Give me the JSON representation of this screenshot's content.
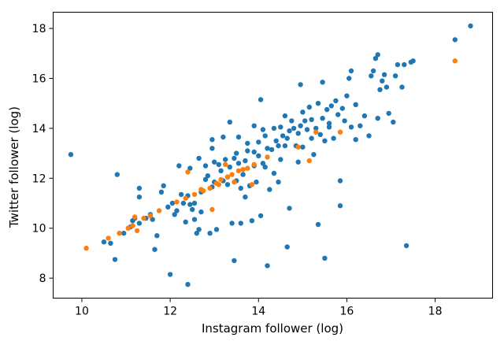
{
  "chart_data": {
    "type": "scatter",
    "xlabel": "Instagram follower (log)",
    "ylabel": "Twitter follower (log)",
    "xlim": [
      9.35,
      19.3
    ],
    "ylim": [
      7.2,
      18.65
    ],
    "x_ticks": [
      10,
      12,
      14,
      16,
      18
    ],
    "y_ticks": [
      8,
      10,
      12,
      14,
      16,
      18
    ],
    "x_tick_labels": [
      "10",
      "12",
      "14",
      "16",
      "18"
    ],
    "y_tick_labels": [
      "8",
      "10",
      "12",
      "14",
      "16",
      "18"
    ],
    "grid": false,
    "series": [
      {
        "name": "blue",
        "color": "#1f77b4",
        "points": [
          [
            9.75,
            12.95
          ],
          [
            10.5,
            9.45
          ],
          [
            10.65,
            9.4
          ],
          [
            10.75,
            8.75
          ],
          [
            10.8,
            12.15
          ],
          [
            10.95,
            9.8
          ],
          [
            11.1,
            10.05
          ],
          [
            11.15,
            10.3
          ],
          [
            11.2,
            10.4
          ],
          [
            11.3,
            10.2
          ],
          [
            11.3,
            11.6
          ],
          [
            11.3,
            11.25
          ],
          [
            11.45,
            10.4
          ],
          [
            11.55,
            10.55
          ],
          [
            11.6,
            10.35
          ],
          [
            11.65,
            9.15
          ],
          [
            11.7,
            9.7
          ],
          [
            11.8,
            11.45
          ],
          [
            11.85,
            11.7
          ],
          [
            11.95,
            10.85
          ],
          [
            12.0,
            8.15
          ],
          [
            12.05,
            11.0
          ],
          [
            12.1,
            10.55
          ],
          [
            12.15,
            10.7
          ],
          [
            12.2,
            12.5
          ],
          [
            12.25,
            11.35
          ],
          [
            12.3,
            11.0
          ],
          [
            12.35,
            10.25
          ],
          [
            12.4,
            11.3
          ],
          [
            12.4,
            7.75
          ],
          [
            12.45,
            10.95
          ],
          [
            12.45,
            12.4
          ],
          [
            12.5,
            10.75
          ],
          [
            12.55,
            11.0
          ],
          [
            12.55,
            10.35
          ],
          [
            12.6,
            9.8
          ],
          [
            12.65,
            9.95
          ],
          [
            12.7,
            10.65
          ],
          [
            12.7,
            11.45
          ],
          [
            12.8,
            11.95
          ],
          [
            12.8,
            12.5
          ],
          [
            12.85,
            12.1
          ],
          [
            12.9,
            9.8
          ],
          [
            12.95,
            11.65
          ],
          [
            12.95,
            13.2
          ],
          [
            12.95,
            13.55
          ],
          [
            13.0,
            11.85
          ],
          [
            13.05,
            9.95
          ],
          [
            13.1,
            12.55
          ],
          [
            13.15,
            12.3
          ],
          [
            13.2,
            11.9
          ],
          [
            13.2,
            13.65
          ],
          [
            13.25,
            12.75
          ],
          [
            13.3,
            12.05
          ],
          [
            13.3,
            11.75
          ],
          [
            13.35,
            12.45
          ],
          [
            13.35,
            14.25
          ],
          [
            13.4,
            10.2
          ],
          [
            13.45,
            12.8
          ],
          [
            13.45,
            8.7
          ],
          [
            13.5,
            11.9
          ],
          [
            13.5,
            13.0
          ],
          [
            13.55,
            12.6
          ],
          [
            13.55,
            13.65
          ],
          [
            13.6,
            11.6
          ],
          [
            13.6,
            10.2
          ],
          [
            13.65,
            12.15
          ],
          [
            13.7,
            11.25
          ],
          [
            13.7,
            12.7
          ],
          [
            13.75,
            13.1
          ],
          [
            13.75,
            13.4
          ],
          [
            13.8,
            11.7
          ],
          [
            13.85,
            10.3
          ],
          [
            13.9,
            12.5
          ],
          [
            13.9,
            13.05
          ],
          [
            13.95,
            11.85
          ],
          [
            14.0,
            13.45
          ],
          [
            14.0,
            12.9
          ],
          [
            14.05,
            15.15
          ],
          [
            14.05,
            10.5
          ],
          [
            14.1,
            12.6
          ],
          [
            14.1,
            13.95
          ],
          [
            14.15,
            12.45
          ],
          [
            14.15,
            13.7
          ],
          [
            14.2,
            13.2
          ],
          [
            14.2,
            8.5
          ],
          [
            14.25,
            11.55
          ],
          [
            14.3,
            13.15
          ],
          [
            14.35,
            12.2
          ],
          [
            14.35,
            14.0
          ],
          [
            14.4,
            13.5
          ],
          [
            14.45,
            11.85
          ],
          [
            14.45,
            13.3
          ],
          [
            14.5,
            14.05
          ],
          [
            14.5,
            12.75
          ],
          [
            14.55,
            13.7
          ],
          [
            14.6,
            13.3
          ],
          [
            14.6,
            14.5
          ],
          [
            14.65,
            13.6
          ],
          [
            14.65,
            9.25
          ],
          [
            14.7,
            10.8
          ],
          [
            14.7,
            13.9
          ],
          [
            14.75,
            14.3
          ],
          [
            14.8,
            14.0
          ],
          [
            14.85,
            13.3
          ],
          [
            14.9,
            12.65
          ],
          [
            14.9,
            13.8
          ],
          [
            14.95,
            15.75
          ],
          [
            14.95,
            14.1
          ],
          [
            15.0,
            14.65
          ],
          [
            15.0,
            13.25
          ],
          [
            15.05,
            14.3
          ],
          [
            15.1,
            13.95
          ],
          [
            15.15,
            14.85
          ],
          [
            15.2,
            14.35
          ],
          [
            15.2,
            13.6
          ],
          [
            15.25,
            12.95
          ],
          [
            15.3,
            14.0
          ],
          [
            15.35,
            10.15
          ],
          [
            15.35,
            15.0
          ],
          [
            15.4,
            13.75
          ],
          [
            15.45,
            15.85
          ],
          [
            15.45,
            14.4
          ],
          [
            15.5,
            8.8
          ],
          [
            15.5,
            13.5
          ],
          [
            15.55,
            14.75
          ],
          [
            15.6,
            14.2
          ],
          [
            15.65,
            14.9
          ],
          [
            15.7,
            13.6
          ],
          [
            15.75,
            15.1
          ],
          [
            15.8,
            14.55
          ],
          [
            15.85,
            11.9
          ],
          [
            15.85,
            10.9
          ],
          [
            15.9,
            14.8
          ],
          [
            15.95,
            14.3
          ],
          [
            16.0,
            15.3
          ],
          [
            16.05,
            16.0
          ],
          [
            16.1,
            16.3
          ],
          [
            16.1,
            14.05
          ],
          [
            16.2,
            14.95
          ],
          [
            16.2,
            13.55
          ],
          [
            16.3,
            14.1
          ],
          [
            16.4,
            14.5
          ],
          [
            16.5,
            13.7
          ],
          [
            16.55,
            16.1
          ],
          [
            16.6,
            16.3
          ],
          [
            16.65,
            16.8
          ],
          [
            16.7,
            14.4
          ],
          [
            16.75,
            15.55
          ],
          [
            16.8,
            15.9
          ],
          [
            16.85,
            16.15
          ],
          [
            16.9,
            15.65
          ],
          [
            16.95,
            14.6
          ],
          [
            17.05,
            14.25
          ],
          [
            17.1,
            16.1
          ],
          [
            17.15,
            16.55
          ],
          [
            17.25,
            15.65
          ],
          [
            17.3,
            16.55
          ],
          [
            17.35,
            9.3
          ],
          [
            17.45,
            16.65
          ],
          [
            17.5,
            16.7
          ],
          [
            18.45,
            17.55
          ],
          [
            18.8,
            18.1
          ],
          [
            16.7,
            16.95
          ],
          [
            15.6,
            14.05
          ],
          [
            13.0,
            12.65
          ],
          [
            12.65,
            12.8
          ],
          [
            13.9,
            14.1
          ]
        ]
      },
      {
        "name": "orange",
        "color": "#ff7f0e",
        "points": [
          [
            10.1,
            9.2
          ],
          [
            10.6,
            9.6
          ],
          [
            10.85,
            9.8
          ],
          [
            11.05,
            10.0
          ],
          [
            11.15,
            10.1
          ],
          [
            11.2,
            10.45
          ],
          [
            11.25,
            9.9
          ],
          [
            11.4,
            10.4
          ],
          [
            11.55,
            10.5
          ],
          [
            11.75,
            10.7
          ],
          [
            12.15,
            11.05
          ],
          [
            12.35,
            11.2
          ],
          [
            12.4,
            12.25
          ],
          [
            12.55,
            11.35
          ],
          [
            12.7,
            11.55
          ],
          [
            12.75,
            11.5
          ],
          [
            12.9,
            11.6
          ],
          [
            12.95,
            10.75
          ],
          [
            13.05,
            11.8
          ],
          [
            13.1,
            11.75
          ],
          [
            13.15,
            11.95
          ],
          [
            13.25,
            12.55
          ],
          [
            13.3,
            12.05
          ],
          [
            13.4,
            12.15
          ],
          [
            13.45,
            11.85
          ],
          [
            13.55,
            12.3
          ],
          [
            13.65,
            12.35
          ],
          [
            13.75,
            12.4
          ],
          [
            13.85,
            11.75
          ],
          [
            13.9,
            12.55
          ],
          [
            14.2,
            12.85
          ],
          [
            14.9,
            13.25
          ],
          [
            15.15,
            12.7
          ],
          [
            15.3,
            13.85
          ],
          [
            15.85,
            13.85
          ],
          [
            18.45,
            16.7
          ]
        ]
      }
    ]
  }
}
